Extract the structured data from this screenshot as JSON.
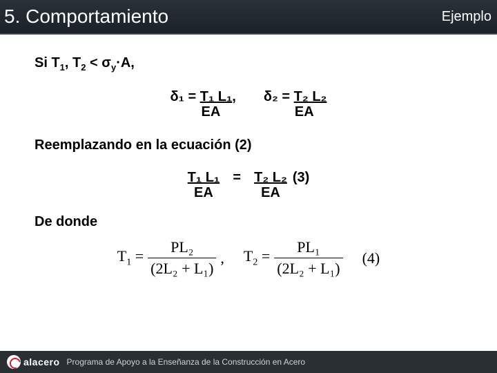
{
  "header": {
    "title": "5. Comportamiento",
    "tag": "Ejemplo"
  },
  "body": {
    "condition_html": "Si T<span class='sub'>1</span>, T<span class='sub'>2</span> < σ<span class='sub'>y</span>·A,",
    "eq1": {
      "lhs": "δ₁  = ",
      "top": "T₁ L₁",
      "bot": "EA",
      "sep": ","
    },
    "eq2": {
      "lhs": "δ₂ = ",
      "top": "T₂ L₂",
      "bot": "EA"
    },
    "replace": "Reemplazando en la ecuación (2)",
    "eq3": {
      "left_top": "T₁ L₁",
      "left_bot": "EA",
      "right_top": "T₂ L₂",
      "right_bot": "EA",
      "label": "(3)"
    },
    "donde": "De donde",
    "eq4": {
      "t1_lhs": "T",
      "t1_sub": "1",
      "t1_num": "PL₂",
      "t1_den": "(2L₂ + L₁)",
      "t2_lhs": "T",
      "t2_sub": "2",
      "t2_num": "PL₁",
      "t2_den": "(2L₂ + L₁)",
      "label": "(4)"
    }
  },
  "footer": {
    "brand": "alacero",
    "subtitle": "Programa de Apoyo a la Enseñanza de la Construcción en Acero"
  },
  "colors": {
    "header_bg_top": "#2a3238",
    "header_bg_bottom": "#1a2128",
    "text": "#000000",
    "footer_bg": "#2a2f33",
    "footer_text": "#cfd3d6",
    "brand_accent": "#c8202f"
  }
}
